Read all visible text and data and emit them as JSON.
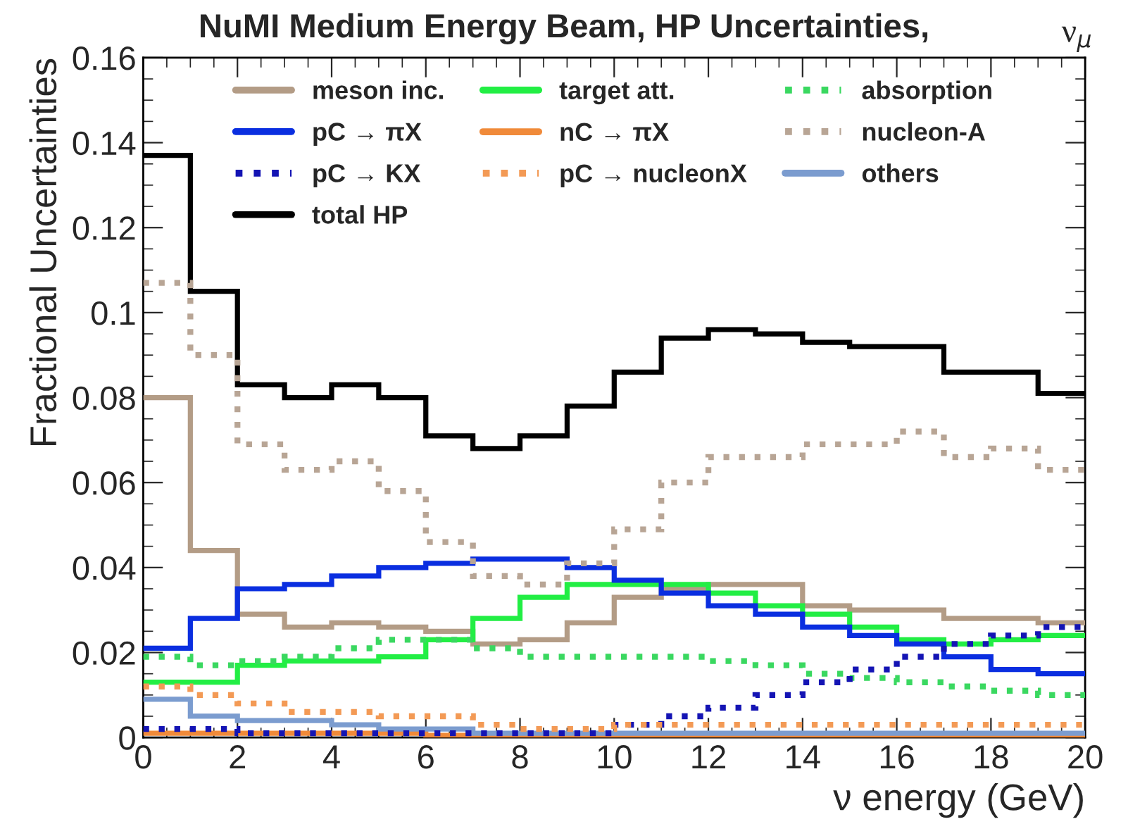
{
  "chart_data": {
    "type": "histogram",
    "title": "NuMI Medium Energy Beam, HP Uncertainties,",
    "annotations": [
      "ν$_{μ}$"
    ],
    "xlabel": "ν energy (GeV)",
    "ylabel": "Fractional Uncertainties",
    "bins": [
      0,
      1,
      2,
      3,
      4,
      5,
      6,
      7,
      8,
      9,
      10,
      11,
      12,
      13,
      14,
      15,
      16,
      17,
      18,
      19,
      20
    ],
    "xlim": [
      0,
      20
    ],
    "xticks": [
      0,
      2,
      4,
      6,
      8,
      10,
      12,
      14,
      16,
      18,
      20
    ],
    "ylim": [
      0,
      0.16
    ],
    "yticks": [
      0,
      0.02,
      0.04,
      0.06,
      0.08,
      0.1,
      0.12,
      0.14,
      0.16
    ],
    "grid": false,
    "legend": "top",
    "series": [
      {
        "name": "meson inc.",
        "color": "#b39c86",
        "line_style": "solid",
        "values": [
          0.08,
          0.044,
          0.029,
          0.026,
          0.027,
          0.026,
          0.025,
          0.022,
          0.023,
          0.027,
          0.033,
          0.035,
          0.036,
          0.036,
          0.031,
          0.03,
          0.03,
          0.028,
          0.028,
          0.027
        ]
      },
      {
        "name": "target att.",
        "color": "#22ee44",
        "line_style": "solid",
        "values": [
          0.013,
          0.013,
          0.017,
          0.018,
          0.018,
          0.019,
          0.023,
          0.028,
          0.033,
          0.036,
          0.036,
          0.036,
          0.034,
          0.031,
          0.029,
          0.026,
          0.023,
          0.022,
          0.023,
          0.024
        ]
      },
      {
        "name": "absorption",
        "color": "#3ad860",
        "line_style": "dotted",
        "values": [
          0.019,
          0.017,
          0.018,
          0.019,
          0.021,
          0.023,
          0.023,
          0.021,
          0.019,
          0.019,
          0.019,
          0.019,
          0.018,
          0.017,
          0.015,
          0.014,
          0.013,
          0.012,
          0.011,
          0.01
        ]
      },
      {
        "name": "pC → πX",
        "color": "#0a2ee0",
        "line_style": "solid",
        "values": [
          0.021,
          0.028,
          0.035,
          0.036,
          0.038,
          0.04,
          0.041,
          0.042,
          0.042,
          0.04,
          0.037,
          0.034,
          0.031,
          0.029,
          0.026,
          0.024,
          0.022,
          0.019,
          0.016,
          0.015
        ]
      },
      {
        "name": "nC → πX",
        "color": "#f08a3a",
        "line_style": "solid",
        "values": [
          0.001,
          0.001,
          0.001,
          0.001,
          0.001,
          0.001,
          0.0005,
          0.0005,
          0.0005,
          0.0005,
          0.0005,
          0.0005,
          0.0005,
          0.0005,
          0.0005,
          0.0005,
          0.0005,
          0.0005,
          0.0005,
          0.0005
        ]
      },
      {
        "name": "nucleon-A",
        "color": "#b8a595",
        "line_style": "dotted",
        "values": [
          0.107,
          0.09,
          0.069,
          0.063,
          0.065,
          0.058,
          0.046,
          0.038,
          0.036,
          0.041,
          0.049,
          0.06,
          0.066,
          0.066,
          0.069,
          0.069,
          0.072,
          0.066,
          0.068,
          0.063
        ]
      },
      {
        "name": "pC → KX",
        "color": "#1414b4",
        "line_style": "dotted",
        "values": [
          0.002,
          0.002,
          0.001,
          0.001,
          0.001,
          0.001,
          0.001,
          0.001,
          0.001,
          0.001,
          0.003,
          0.005,
          0.007,
          0.01,
          0.013,
          0.016,
          0.019,
          0.022,
          0.024,
          0.026
        ]
      },
      {
        "name": "pC → nucleonX",
        "color": "#f39a55",
        "line_style": "dotted",
        "values": [
          0.012,
          0.01,
          0.008,
          0.006,
          0.006,
          0.005,
          0.005,
          0.003,
          0.002,
          0.002,
          0.003,
          0.003,
          0.003,
          0.003,
          0.003,
          0.003,
          0.003,
          0.003,
          0.003,
          0.003
        ]
      },
      {
        "name": "others",
        "color": "#7b9ccf",
        "line_style": "solid",
        "values": [
          0.009,
          0.005,
          0.004,
          0.004,
          0.003,
          0.002,
          0.002,
          0.001,
          0.001,
          0.001,
          0.001,
          0.001,
          0.001,
          0.001,
          0.001,
          0.001,
          0.001,
          0.001,
          0.001,
          0.001
        ]
      },
      {
        "name": "total HP",
        "color": "#000000",
        "line_style": "solid",
        "values": [
          0.137,
          0.105,
          0.083,
          0.08,
          0.083,
          0.08,
          0.071,
          0.068,
          0.071,
          0.078,
          0.086,
          0.094,
          0.096,
          0.095,
          0.093,
          0.092,
          0.092,
          0.086,
          0.086,
          0.081
        ]
      }
    ]
  }
}
